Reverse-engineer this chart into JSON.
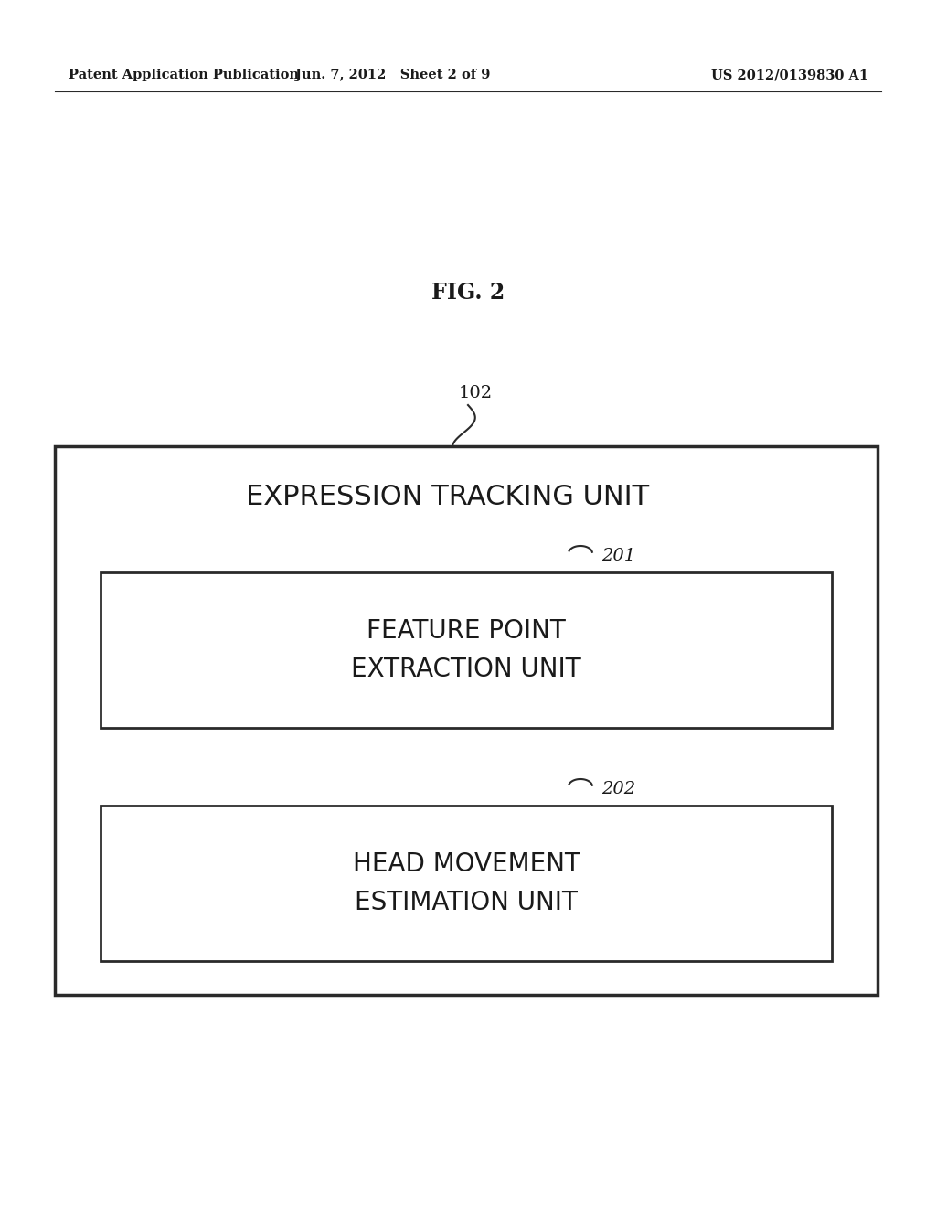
{
  "fig_label": "FIG. 2",
  "header_left": "Patent Application Publication",
  "header_center": "Jun. 7, 2012   Sheet 2 of 9",
  "header_right": "US 2012/0139830 A1",
  "outer_box_label": "EXPRESSION TRACKING UNIT",
  "ref_102": "102",
  "ref_201": "201",
  "ref_202": "202",
  "inner_box1_label": "FEATURE POINT\nEXTRACTION UNIT",
  "inner_box2_label": "HEAD MOVEMENT\nESTIMATION UNIT",
  "bg_color": "#ffffff",
  "text_color": "#1a1a1a",
  "box_edge_color": "#2a2a2a",
  "fig_label_fontsize": 17,
  "header_fontsize": 10.5,
  "outer_label_fontsize": 22,
  "inner_label_fontsize": 20,
  "ref_fontsize": 14
}
